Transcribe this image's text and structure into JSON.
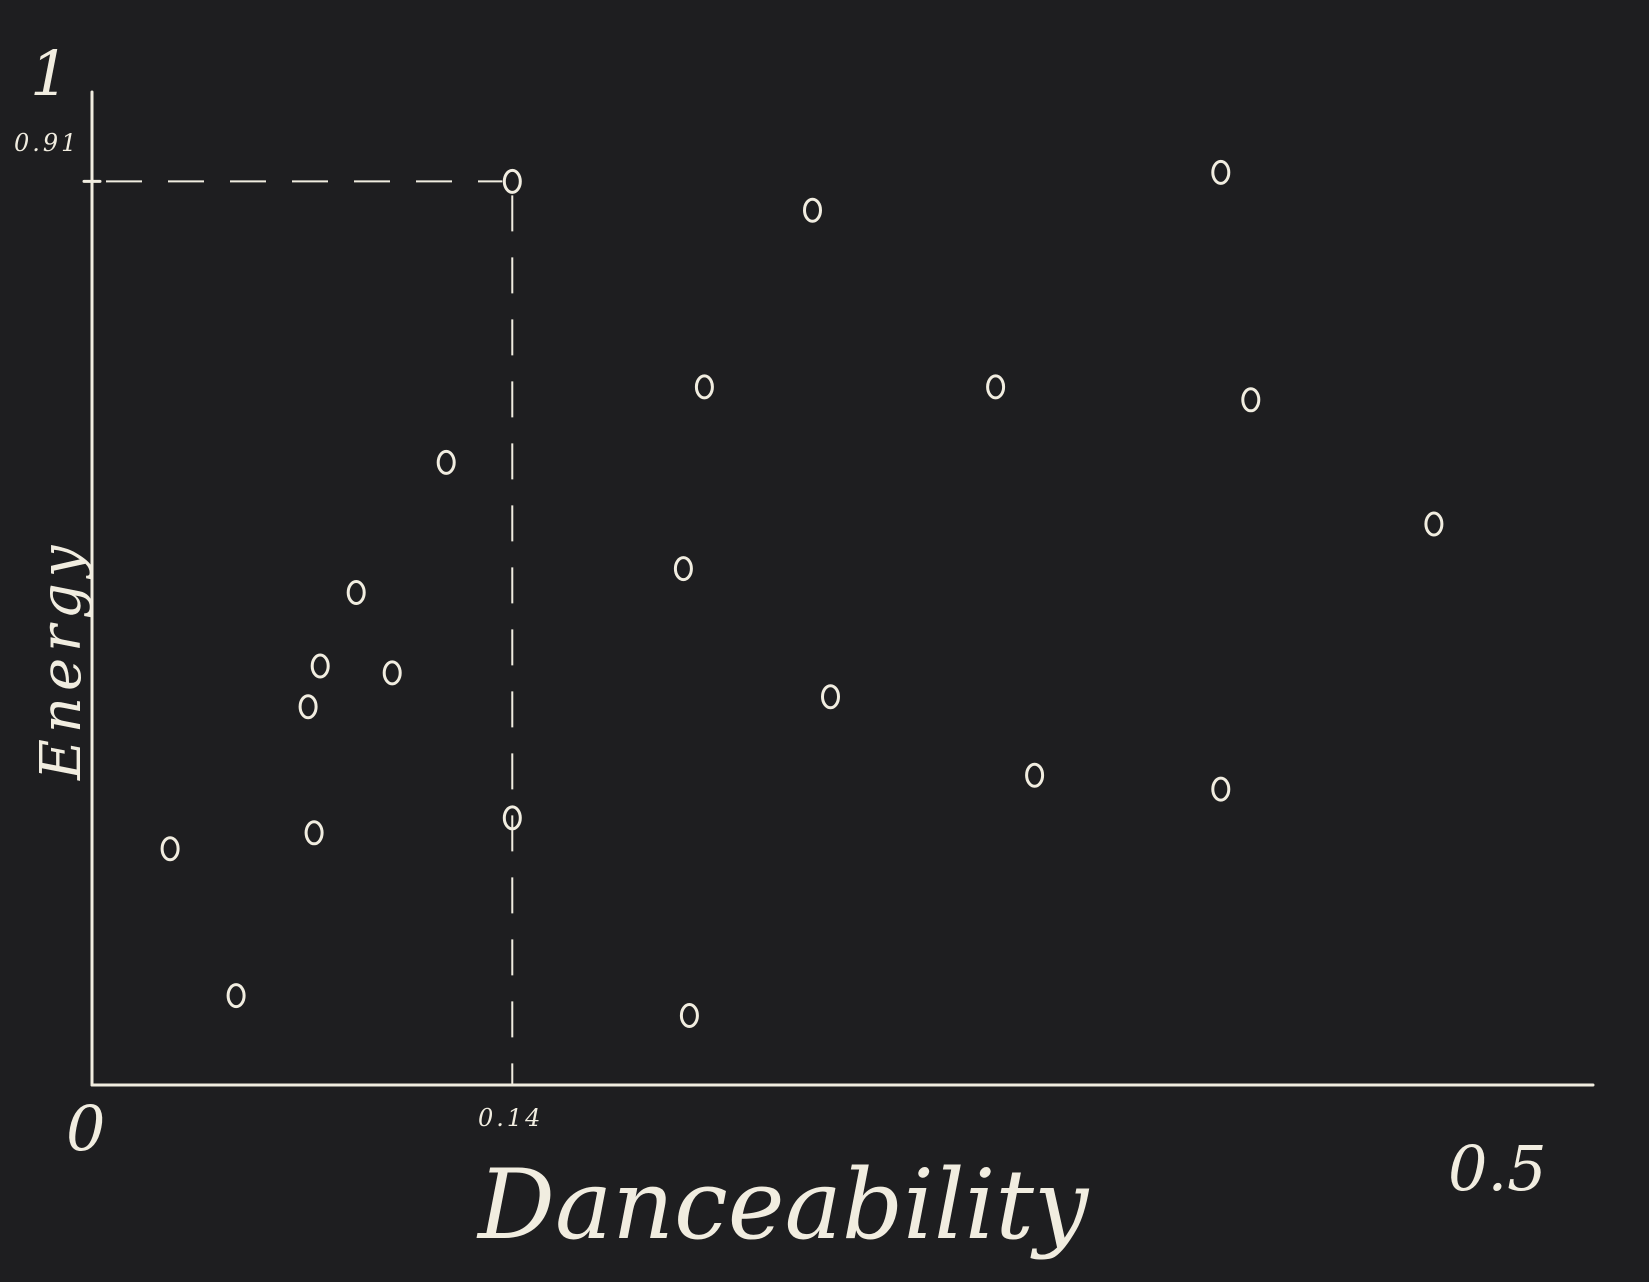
{
  "chart_data": {
    "type": "scatter",
    "title": "",
    "xlabel": "Danceability",
    "ylabel": "Energy",
    "xlim": [
      0,
      0.5
    ],
    "ylim": [
      0,
      1
    ],
    "x_tick_labels": [
      "0",
      "0.14",
      "0.5"
    ],
    "y_tick_labels": [
      "1",
      "0.91"
    ],
    "x_tick_values": [
      0,
      0.14,
      0.5
    ],
    "y_tick_values": [
      1,
      0.91
    ],
    "highlight": {
      "x": 0.14,
      "y": 0.91
    },
    "grid": false,
    "points": [
      {
        "x": 0.026,
        "y": 0.238
      },
      {
        "x": 0.048,
        "y": 0.09
      },
      {
        "x": 0.074,
        "y": 0.254
      },
      {
        "x": 0.072,
        "y": 0.381
      },
      {
        "x": 0.076,
        "y": 0.422
      },
      {
        "x": 0.088,
        "y": 0.496
      },
      {
        "x": 0.1,
        "y": 0.415
      },
      {
        "x": 0.118,
        "y": 0.627
      },
      {
        "x": 0.14,
        "y": 0.91
      },
      {
        "x": 0.14,
        "y": 0.269
      },
      {
        "x": 0.197,
        "y": 0.52
      },
      {
        "x": 0.204,
        "y": 0.703
      },
      {
        "x": 0.199,
        "y": 0.07
      },
      {
        "x": 0.24,
        "y": 0.881
      },
      {
        "x": 0.246,
        "y": 0.391
      },
      {
        "x": 0.301,
        "y": 0.703
      },
      {
        "x": 0.314,
        "y": 0.312
      },
      {
        "x": 0.376,
        "y": 0.298
      },
      {
        "x": 0.376,
        "y": 0.919
      },
      {
        "x": 0.386,
        "y": 0.69
      },
      {
        "x": 0.447,
        "y": 0.565
      }
    ],
    "color": "#f1ede0",
    "background": "#1e1e20"
  }
}
